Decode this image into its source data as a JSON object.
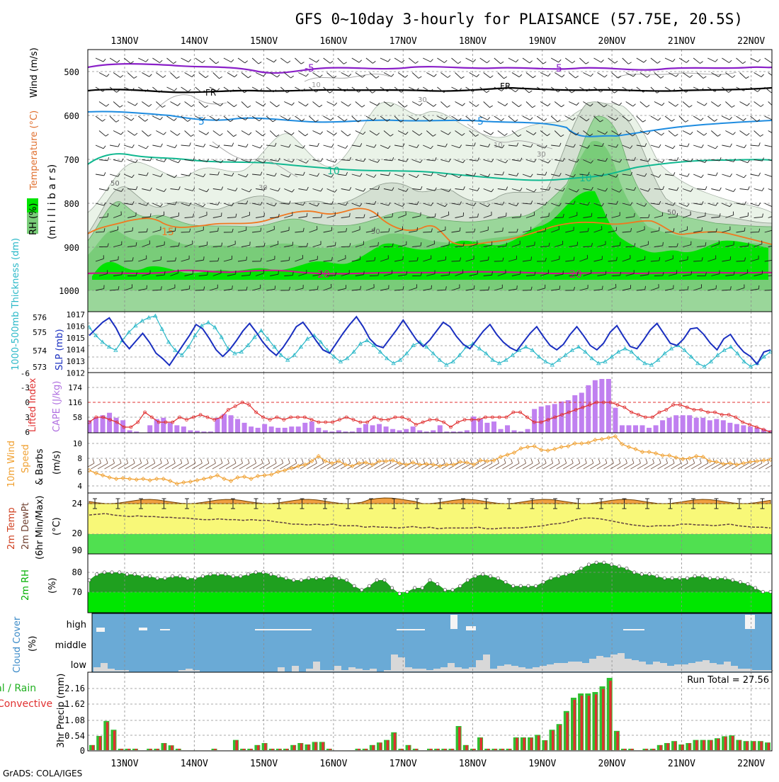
{
  "title": "GFS 0~10day 3-hourly for PLAISANCE (57.75E, 20.5S)",
  "footer": "GrADS: COLA/IGES",
  "days": [
    "13NOV",
    "14NOV",
    "15NOV",
    "16NOV",
    "17NOV",
    "18NOV",
    "19NOV",
    "20NOV",
    "21NOV",
    "22NOV"
  ],
  "colors": {
    "grid": "#9a9a9a",
    "rh_light": "#e8f2e6",
    "rh_mid": "#cfdccd",
    "rh_dark": "#79cc79",
    "rh_bright": "#00e600",
    "slp": "#1a2fc0",
    "thick": "#2ab8c8",
    "cape": "#c080f0",
    "li": "#e03030",
    "wind": "#f0a030",
    "temp_fill": "#f0a040",
    "yellow": "#f8f878",
    "green": "#50e050",
    "rh2m_dark": "#20a020",
    "rh2m_bright": "#00e600",
    "cloud_blue": "#6aaad6",
    "cloud_grey": "#d8d8d8",
    "precip_green": "#30c030",
    "precip_red": "#e03030"
  },
  "panel1": {
    "labels": {
      "rh": "RH (%)",
      "temperature": "Temperature (°C)",
      "wind": "Wind (m/s)",
      "millibars": "(m i l l i b a r s)"
    },
    "yticks": [
      "500",
      "600",
      "700",
      "800",
      "900",
      "1000"
    ],
    "contour_labels": {
      "m5a": "-5",
      "m5b": "-5",
      "fra": "FR",
      "frb": "FR",
      "p5a": "5",
      "p5b": "5",
      "p10a": "10",
      "p10b": "10",
      "p15": "15",
      "p20a": "20",
      "p20b": "20",
      "rh10a": "10",
      "rh10b": "10",
      "rh30a": "30",
      "rh30b": "30",
      "rh30c": "30",
      "rh50a": "50",
      "rh50b": "50",
      "rh50c": "50"
    }
  },
  "panel2": {
    "label_thick": "1000-500mb Thickness (dm)",
    "label_slp": "SLP (mb)",
    "left_ticks": [
      "576",
      "575",
      "574",
      "573"
    ],
    "right_ticks": [
      "1017",
      "1016",
      "1015",
      "1014",
      "1013",
      "1012"
    ]
  },
  "panel3": {
    "label_li": "Lifted Index",
    "label_cape": "CAPE (J/kg)",
    "left_ticks": [
      "-6",
      "-3",
      "0",
      "3",
      "6"
    ],
    "right_ticks": [
      "174",
      "116",
      "58"
    ]
  },
  "panel4": {
    "label_a": "10m Wind",
    "label_b": "Speed",
    "label_c": "& Barbs",
    "label_units": "(m/s)",
    "ticks": [
      "10",
      "8",
      "6",
      "4"
    ]
  },
  "panel5": {
    "label_a": "2m Temp",
    "label_b": "2m DewPt",
    "label_c": "(6hr Min/Max)",
    "label_units": "(°C)",
    "ticks": [
      "24",
      "20",
      "90"
    ]
  },
  "panel6": {
    "label": "2m RH",
    "label_units": "(%)",
    "ticks": [
      "80",
      "70"
    ]
  },
  "panel7": {
    "label": "Cloud Cover",
    "label_units": "(%)",
    "levels": [
      "high",
      "middle",
      "low"
    ]
  },
  "panel8": {
    "label_a": "Total / Rain",
    "label_b": "Convective",
    "label_c": "3hr Precip (mm)",
    "ticks": [
      "2.16",
      "1.62",
      "1.08",
      "0.54",
      "0"
    ],
    "run_total": "Run Total = 27.56"
  },
  "chart_data": {
    "type": "meteogram",
    "title": "GFS 0~10day 3-hourly for PLAISANCE (57.75E, 20.5S)",
    "x_categories": [
      "13NOV",
      "14NOV",
      "15NOV",
      "16NOV",
      "17NOV",
      "18NOV",
      "19NOV",
      "20NOV",
      "21NOV",
      "22NOV"
    ],
    "time_step_hours": 3,
    "slp_mb": [
      1015.1,
      1015.7,
      1016.3,
      1016.7,
      1015.8,
      1014.6,
      1013.9,
      1014.6,
      1015.3,
      1014.5,
      1013.5,
      1013.0,
      1012.4,
      1013.3,
      1014.2,
      1015.1,
      1016.1,
      1015.7,
      1014.8,
      1013.8,
      1013.2,
      1013.8,
      1014.6,
      1015.5,
      1016.2,
      1015.4,
      1014.5,
      1013.8,
      1013.3,
      1014.0,
      1014.9,
      1015.9,
      1016.3,
      1015.5,
      1014.6,
      1013.8,
      1013.5,
      1014.4,
      1015.3,
      1016.1,
      1016.8,
      1015.9,
      1014.8,
      1014.2,
      1014.0,
      1014.8,
      1015.6,
      1016.5,
      1015.6,
      1014.7,
      1014.1,
      1014.7,
      1015.5,
      1016.3,
      1015.9,
      1015.0,
      1014.3,
      1013.9,
      1014.7,
      1015.5,
      1016.1,
      1015.2,
      1014.5,
      1014.0,
      1013.7,
      1014.5,
      1015.3,
      1015.9,
      1015.0,
      1014.2,
      1013.8,
      1014.3,
      1015.2,
      1015.9,
      1015.1,
      1014.2,
      1013.8,
      1014.4,
      1015.4,
      1016.0,
      1015.0,
      1014.1,
      1013.9,
      1014.7,
      1015.6,
      1016.2,
      1015.3,
      1014.4,
      1014.2,
      1014.8,
      1015.7,
      1015.8,
      1015.2,
      1014.4,
      1013.8,
      1014.8,
      1015.2,
      1014.3,
      1013.6,
      1013.2,
      1012.5,
      1013.6,
      1013.8
    ],
    "thickness_dm": [
      575.5,
      575.0,
      574.6,
      574.3,
      574.1,
      574.7,
      575.2,
      575.6,
      575.9,
      576.1,
      576.2,
      575.4,
      574.6,
      574.1,
      573.8,
      574.3,
      575.0,
      575.6,
      575.8,
      575.5,
      574.9,
      574.2,
      573.9,
      574.0,
      574.4,
      574.9,
      575.3,
      574.8,
      574.3,
      573.8,
      573.5,
      573.8,
      574.3,
      574.8,
      575.0,
      574.6,
      574.1,
      573.7,
      573.4,
      573.6,
      574.0,
      574.5,
      574.7,
      574.4,
      574.0,
      573.6,
      573.3,
      573.5,
      573.9,
      574.4,
      574.6,
      574.3,
      573.9,
      573.5,
      573.2,
      573.4,
      573.8,
      574.3,
      574.5,
      574.2,
      573.9,
      573.5,
      573.3,
      573.5,
      573.8,
      574.1,
      574.3,
      574.1,
      573.7,
      573.4,
      573.2,
      573.5,
      573.8,
      574.1,
      574.3,
      574.0,
      573.6,
      573.3,
      573.4,
      573.7,
      574.0,
      574.2,
      574.0,
      573.6,
      573.3,
      573.2,
      573.5,
      573.9,
      574.2,
      574.4,
      574.1,
      573.7,
      573.3,
      573.1,
      573.4,
      573.8,
      574.1,
      574.3,
      573.9,
      573.4,
      573.1,
      573.3,
      573.7,
      574.0
    ],
    "cape_jkg": [
      50,
      62,
      70,
      80,
      60,
      50,
      10,
      5,
      0,
      30,
      55,
      60,
      40,
      30,
      25,
      10,
      8,
      5,
      5,
      60,
      75,
      70,
      55,
      40,
      25,
      20,
      35,
      25,
      20,
      20,
      25,
      25,
      40,
      45,
      20,
      10,
      5,
      10,
      5,
      5,
      20,
      35,
      30,
      35,
      25,
      15,
      10,
      15,
      25,
      10,
      5,
      10,
      30,
      5,
      5,
      5,
      10,
      65,
      55,
      40,
      45,
      15,
      30,
      10,
      5,
      15,
      95,
      105,
      110,
      115,
      125,
      130,
      150,
      160,
      190,
      210,
      215,
      215,
      100,
      30,
      30,
      30,
      30,
      20,
      30,
      50,
      60,
      70,
      70,
      70,
      60,
      60,
      50,
      55,
      50,
      40,
      35,
      30,
      25,
      20,
      15,
      10
    ],
    "lifted_index": [
      4,
      3,
      3,
      3.5,
      4,
      5,
      5,
      4,
      2,
      3,
      4,
      4,
      4,
      3,
      3.5,
      3,
      2.5,
      3,
      3.5,
      3,
      1.5,
      0.8,
      0,
      0.5,
      2,
      3,
      3.5,
      3,
      3.5,
      3,
      3,
      3,
      3.5,
      4,
      4,
      4,
      3.5,
      3,
      3.5,
      4,
      4,
      3,
      3.5,
      3.5,
      3,
      3,
      3.5,
      4.5,
      4,
      3.5,
      3.5,
      4,
      5,
      4,
      3.5,
      3.5,
      3.5,
      3,
      3,
      3,
      3,
      2,
      2,
      3,
      4,
      4,
      3.5,
      3,
      2.5,
      2,
      1.5,
      1,
      0.5,
      0,
      0,
      0,
      0.5,
      1,
      2,
      2.5,
      3,
      3,
      2,
      1.5,
      0.5,
      0.5,
      1,
      1.5,
      1.5,
      2,
      2,
      2.5,
      2.5,
      3,
      4,
      4.5,
      5,
      5.5,
      6
    ],
    "wind10m_ms": [
      6.2,
      5.8,
      5.5,
      5.2,
      5.0,
      5.1,
      5.0,
      4.9,
      5.0,
      4.8,
      5.0,
      5.0,
      4.7,
      4.3,
      4.5,
      4.6,
      4.8,
      5.0,
      5.2,
      5.5,
      5.0,
      4.7,
      5.2,
      5.3,
      5.0,
      5.4,
      5.5,
      5.6,
      6.0,
      6.2,
      6.5,
      6.8,
      7.0,
      7.5,
      8.2,
      7.5,
      7.2,
      7.5,
      7.0,
      6.8,
      7.2,
      7.3,
      7.0,
      7.5,
      7.5,
      7.6,
      7.2,
      7.0,
      7.3,
      7.0,
      7.1,
      7.0,
      6.8,
      7.0,
      7.0,
      7.4,
      7.3,
      7.0,
      7.6,
      7.5,
      7.6,
      8.1,
      8.4,
      8.7,
      9.3,
      9.5,
      9.6,
      9.1,
      9.0,
      9.2,
      9.5,
      9.6,
      10.0,
      10.0,
      10.1,
      10.5,
      10.6,
      10.8,
      11.0,
      9.9,
      9.5,
      9.2,
      8.8,
      8.8,
      8.6,
      8.3,
      8.3,
      8.0,
      7.8,
      7.9,
      8.2,
      8.1,
      7.5,
      7.4,
      7.1,
      7.2,
      7.0,
      7.2,
      7.4,
      7.5,
      7.6,
      7.7
    ],
    "temp2m_c": 24.1,
    "dewpt2m_c": [
      22.5,
      22.6,
      22.7,
      22.5,
      22.4,
      22.3,
      22.4,
      22.3,
      22.3,
      22.2,
      22.2,
      22.1,
      22.1,
      22.0,
      21.9,
      21.9,
      22.0,
      21.9,
      21.9,
      21.8,
      21.9,
      21.8,
      21.8,
      21.6,
      21.5,
      21.3,
      21.3,
      21.2,
      21.3,
      21.2,
      21.3,
      21.1,
      21.1,
      21.1,
      20.9,
      21.0,
      20.9,
      20.9,
      20.8,
      20.9,
      21.0,
      20.8,
      20.9,
      20.7,
      20.8,
      20.8,
      20.8,
      20.8,
      20.9,
      20.7,
      20.7,
      20.8,
      20.8,
      20.8,
      20.9,
      21.0,
      21.1,
      21.3,
      21.4,
      21.6,
      21.9,
      22.1,
      22.1,
      22.0,
      21.8,
      21.6,
      21.4,
      21.2,
      21.1,
      21.0,
      21.1,
      21.1,
      21.1,
      21.3,
      21.3,
      21.2,
      21.2,
      21.1,
      21.2,
      21.3,
      21.1,
      21.0,
      20.9,
      20.9,
      20.8
    ],
    "rh2m_pct": [
      76,
      79,
      80,
      80,
      80,
      79,
      79,
      78,
      78,
      77,
      77,
      78,
      78,
      77,
      77,
      78,
      79,
      79,
      79,
      78,
      78,
      79,
      80,
      80,
      79,
      78,
      77,
      76,
      76,
      77,
      77,
      77,
      78,
      77,
      76,
      73,
      71,
      73,
      76,
      76,
      72,
      69,
      70,
      72,
      72,
      76,
      74,
      71,
      71,
      73,
      76,
      78,
      79,
      78,
      77,
      75,
      73,
      73,
      73,
      73,
      75,
      77,
      78,
      79,
      80,
      82,
      84,
      85,
      85,
      84,
      83,
      82,
      80,
      79,
      79,
      78,
      77,
      77,
      77,
      77,
      78,
      78,
      77,
      77,
      77,
      76,
      75,
      74,
      72,
      70,
      70
    ],
    "precip_mm": [
      0.18,
      0.5,
      1.03,
      0.72,
      0.05,
      0.05,
      0.05,
      0,
      0.05,
      0.05,
      0.25,
      0.17,
      0.05,
      0,
      0,
      0,
      0,
      0.05,
      0,
      0,
      0.36,
      0.05,
      0.05,
      0.18,
      0.25,
      0.05,
      0.05,
      0.05,
      0.18,
      0.25,
      0.2,
      0.29,
      0.29,
      0.05,
      0,
      0,
      0,
      0.05,
      0.05,
      0.18,
      0.27,
      0.36,
      0.63,
      0.05,
      0.18,
      0.05,
      0,
      0.05,
      0.05,
      0.05,
      0.05,
      0.85,
      0.18,
      0.05,
      0.45,
      0.05,
      0.05,
      0.05,
      0.05,
      0.45,
      0.45,
      0.45,
      0.54,
      0.35,
      0.72,
      0.92,
      1.38,
      1.85,
      2.0,
      2.0,
      2.05,
      2.25,
      2.55,
      0.68,
      0.05,
      0.05,
      0,
      0.05,
      0.05,
      0.18,
      0.25,
      0.32,
      0.2,
      0.25,
      0.36,
      0.36,
      0.36,
      0.42,
      0.49,
      0.52,
      0.36,
      0.32,
      0.32,
      0.32,
      0.27
    ],
    "run_total_mm": 27.56
  }
}
